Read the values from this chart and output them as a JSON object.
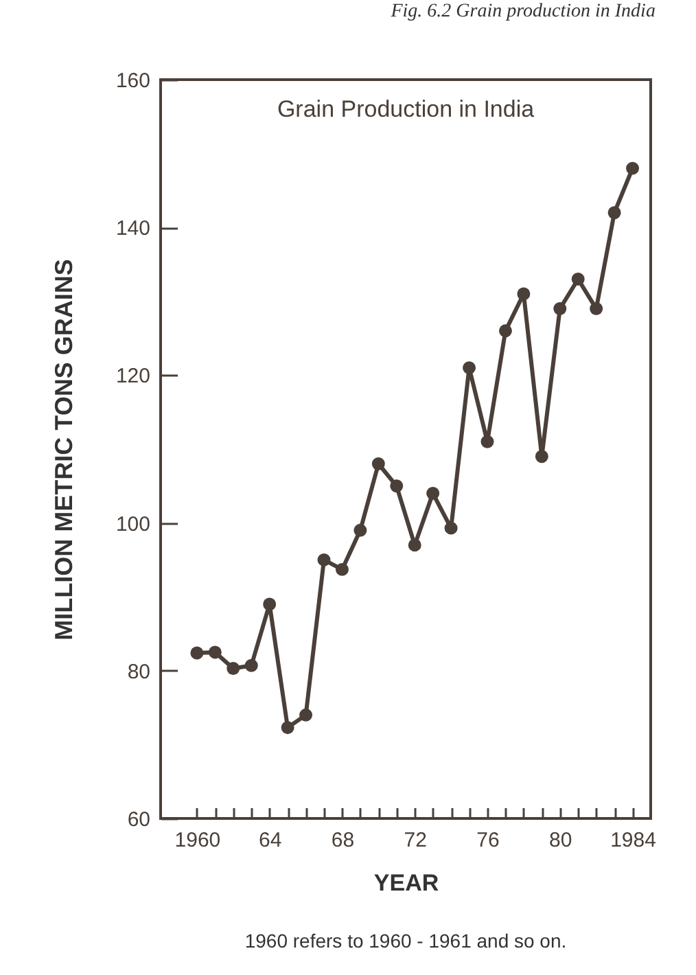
{
  "chart_data": {
    "type": "line",
    "title": "Fig. 6.2 Grain production in India",
    "xlabel": "YEAR",
    "ylabel": "MILLION METRIC TONS GRAINS",
    "annotations": [
      "Grain Production in India",
      "1960 refers to 1960 - 1961 and so on."
    ],
    "x": [
      1960,
      1961,
      1962,
      1963,
      1964,
      1965,
      1966,
      1967,
      1968,
      1969,
      1970,
      1971,
      1972,
      1973,
      1974,
      1975,
      1976,
      1977,
      1978,
      1979,
      1980,
      1981,
      1982,
      1983,
      1984
    ],
    "series": [
      {
        "color": "#4a4039",
        "values": [
          82.4,
          82.5,
          80.3,
          80.7,
          89,
          72.3,
          74,
          95,
          93.7,
          99,
          108,
          105,
          97,
          104,
          99.3,
          121,
          111,
          126,
          131,
          109,
          129,
          133,
          129,
          142,
          148
        ]
      }
    ],
    "xlim": [
      1958,
      1985
    ],
    "xticks": [
      {
        "value": 1960,
        "label": "1960"
      },
      {
        "value": 1961,
        "label": null
      },
      {
        "value": 1962,
        "label": null
      },
      {
        "value": 1963,
        "label": null
      },
      {
        "value": 1964,
        "label": "64"
      },
      {
        "value": 1965,
        "label": null
      },
      {
        "value": 1966,
        "label": null
      },
      {
        "value": 1967,
        "label": null
      },
      {
        "value": 1968,
        "label": "68"
      },
      {
        "value": 1969,
        "label": null
      },
      {
        "value": 1970,
        "label": null
      },
      {
        "value": 1971,
        "label": null
      },
      {
        "value": 1972,
        "label": "72"
      },
      {
        "value": 1973,
        "label": null
      },
      {
        "value": 1974,
        "label": null
      },
      {
        "value": 1975,
        "label": null
      },
      {
        "value": 1976,
        "label": "76"
      },
      {
        "value": 1977,
        "label": null
      },
      {
        "value": 1978,
        "label": null
      },
      {
        "value": 1979,
        "label": null
      },
      {
        "value": 1980,
        "label": "80"
      },
      {
        "value": 1981,
        "label": null
      },
      {
        "value": 1982,
        "label": null
      },
      {
        "value": 1983,
        "label": null
      },
      {
        "value": 1984,
        "label": "1984"
      }
    ],
    "ylim": [
      60,
      160
    ],
    "yticks": [
      60,
      80,
      100,
      120,
      140,
      160
    ],
    "grid": false,
    "legend": false,
    "marker": "circle",
    "line_style": "solid"
  }
}
